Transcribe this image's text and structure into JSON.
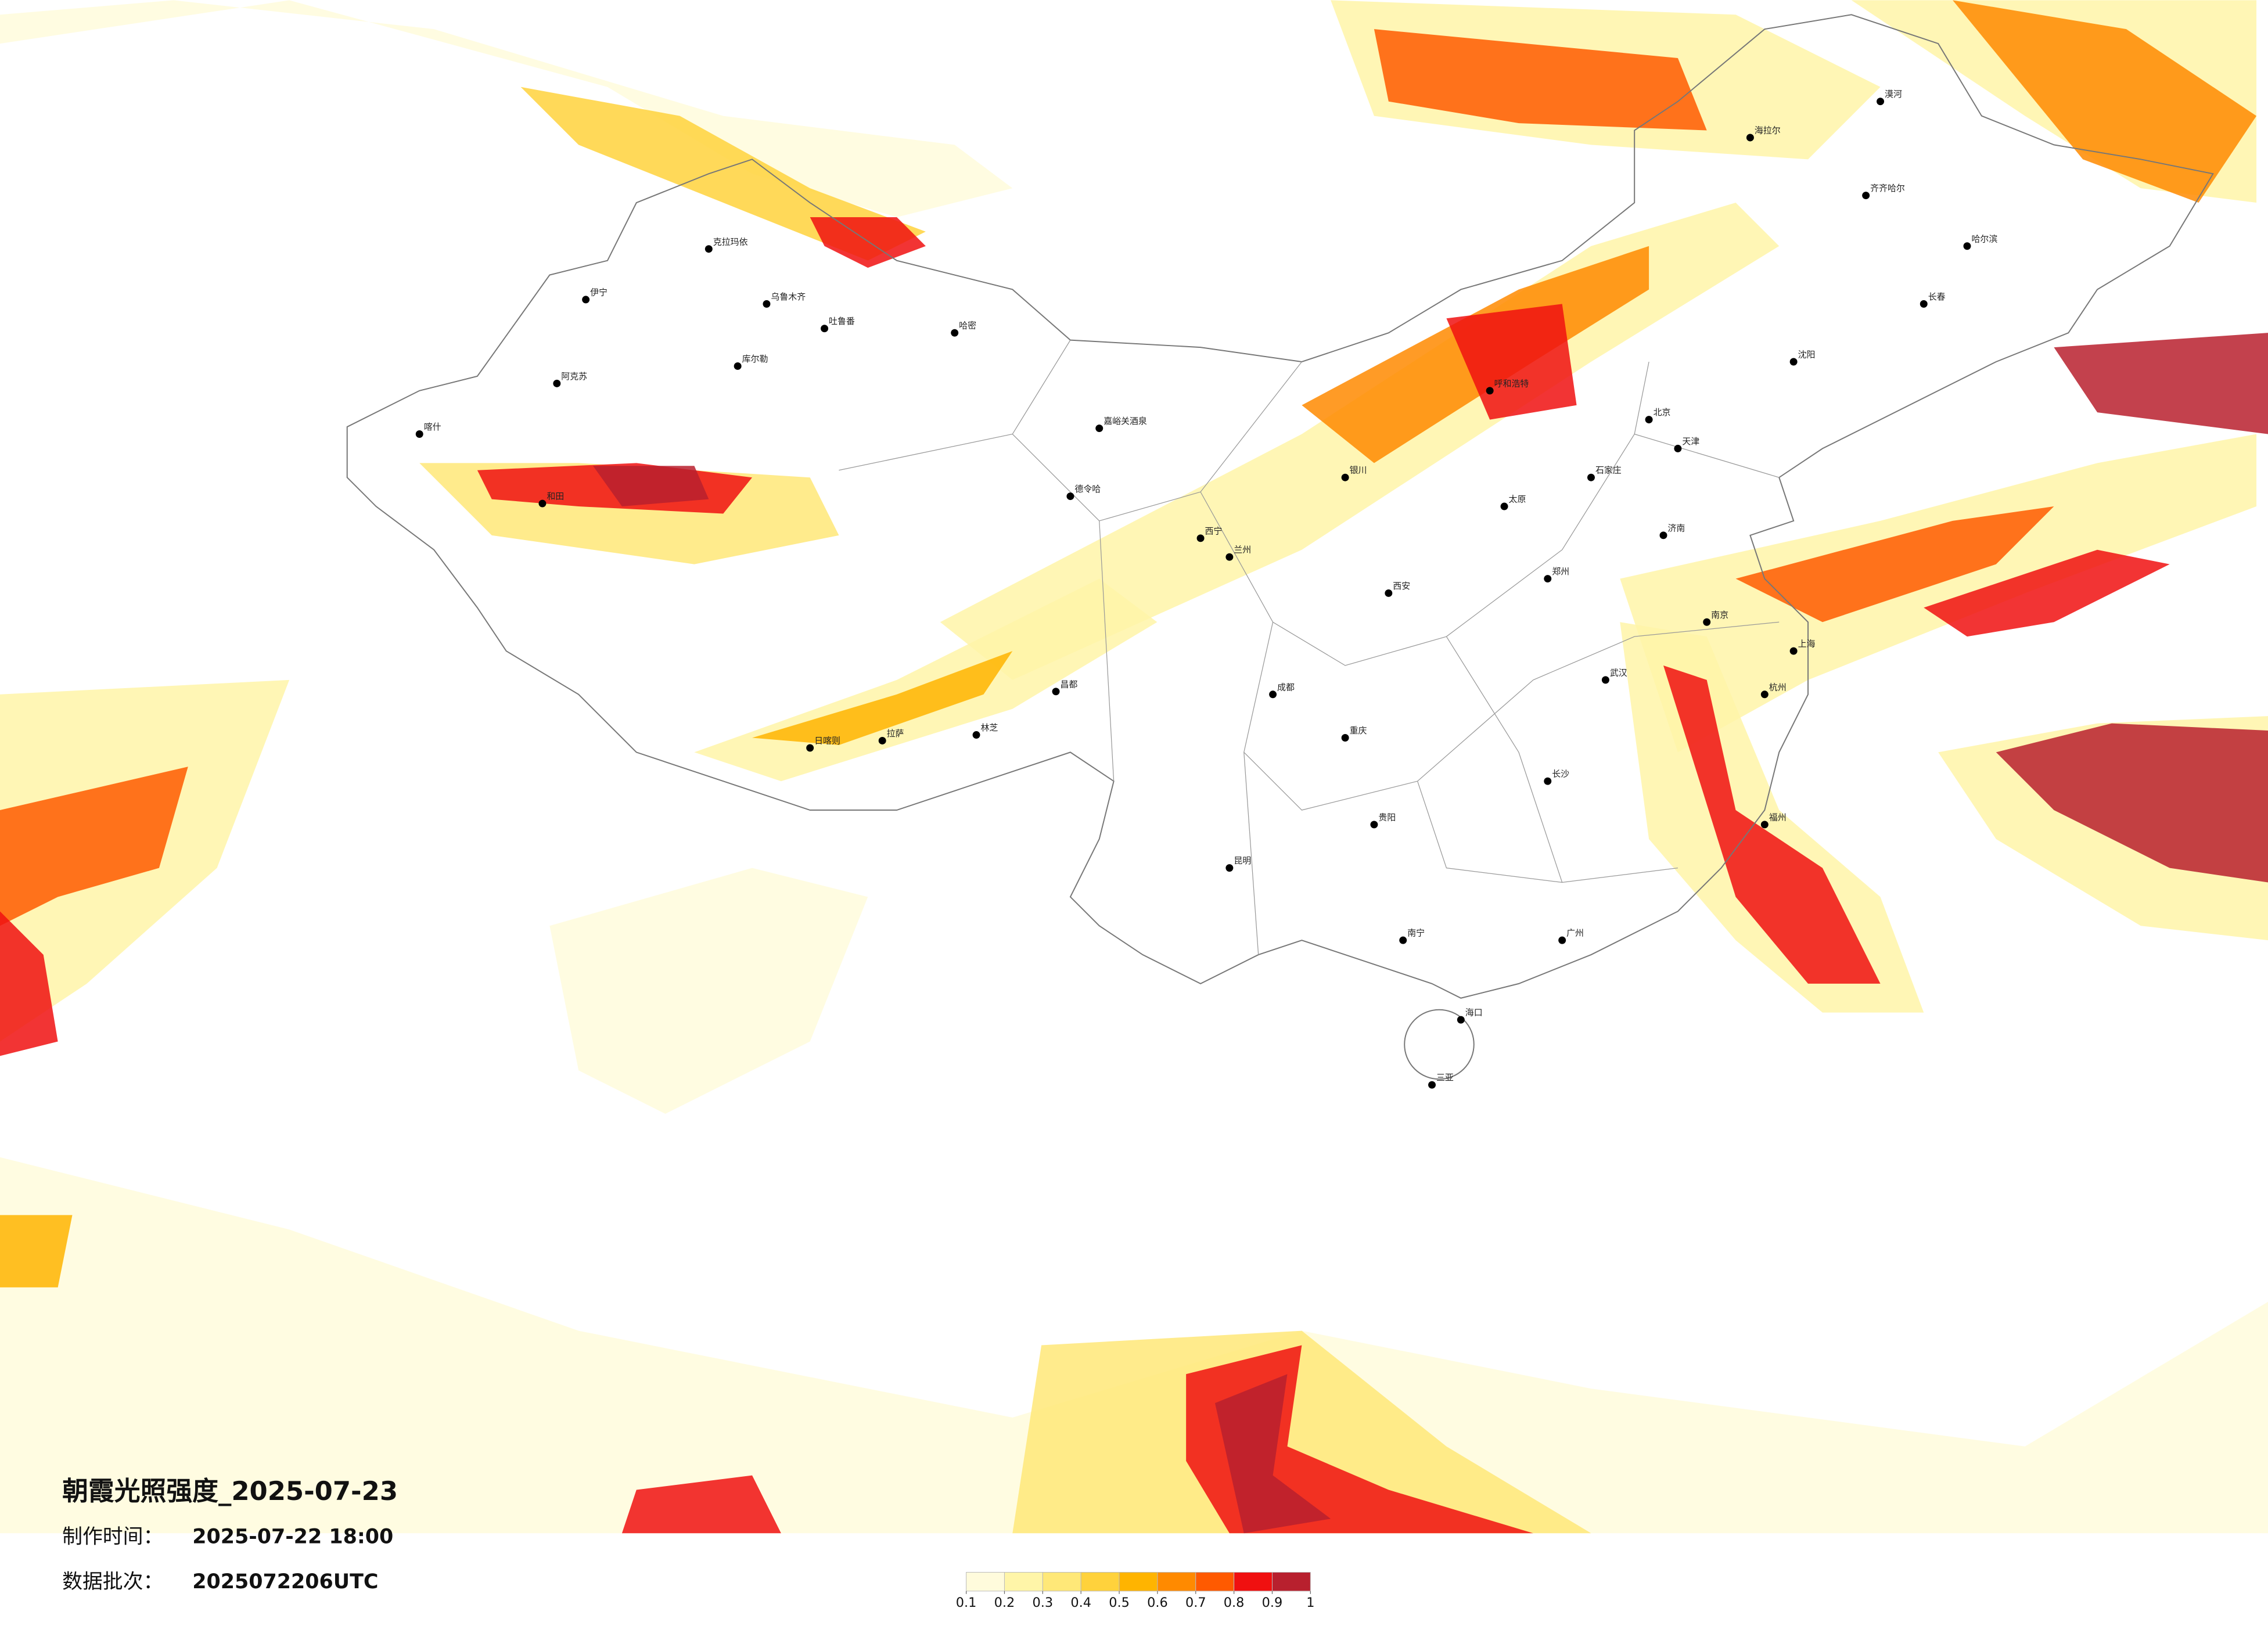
{
  "header": {
    "title": "朝霞光照强度_2025-07-23",
    "made_label": "制作时间：",
    "made_value": "2025-07-22 18:00",
    "batch_label": "数据批次：",
    "batch_value": "2025072206UTC"
  },
  "legend": {
    "ticks": [
      0.1,
      0.2,
      0.3,
      0.4,
      0.5,
      0.6,
      0.7,
      0.8,
      0.9,
      1
    ],
    "colors": [
      "#fffbdc",
      "#fff5a8",
      "#ffe878",
      "#ffd23c",
      "#ffb400",
      "#ff8a00",
      "#ff5a00",
      "#f01010",
      "#b8202e"
    ]
  },
  "cities": [
    "克拉玛依",
    "伊宁",
    "乌鲁木齐",
    "吐鲁番",
    "哈密",
    "库尔勒",
    "阿克苏",
    "喀什",
    "和田",
    "嘉峪关酒泉",
    "德令哈",
    "西宁",
    "兰州",
    "拉萨",
    "日喀则",
    "林芝",
    "昌都",
    "成都",
    "北京",
    "天津",
    "石家庄",
    "太原",
    "郑州",
    "西安",
    "武汉",
    "长沙",
    "南京",
    "上海",
    "杭州",
    "福州",
    "广州",
    "南宁",
    "昆明",
    "贵阳",
    "重庆",
    "海口",
    "三亚",
    "沈阳",
    "长春",
    "哈尔滨",
    "呼和浩特",
    "银川",
    "济南",
    "齐齐哈尔",
    "海拉尔",
    "漠河"
  ]
}
